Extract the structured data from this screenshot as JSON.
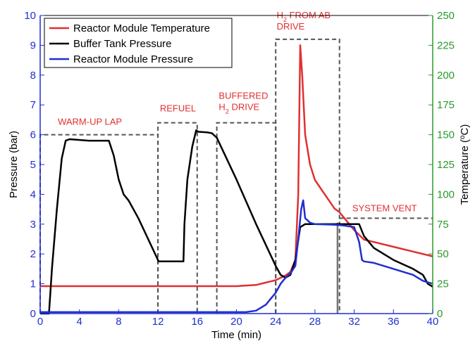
{
  "chart_data": {
    "type": "line",
    "xlabel": "Time (min)",
    "ylabel_left": "Pressure (bar)",
    "ylabel_right": "Temperature (°C)",
    "ylabel_right_parts": {
      "pre": "Temperature (",
      "sup": "o",
      "post": "C)"
    },
    "xlim": [
      0,
      40
    ],
    "ylim_left": [
      0,
      10
    ],
    "ylim_right": [
      0,
      250
    ],
    "grid": false,
    "legend_position": "top-left",
    "x_ticks": [
      "0",
      "4",
      "8",
      "12",
      "16",
      "20",
      "24",
      "28",
      "32",
      "36",
      "40"
    ],
    "y_ticks_left": [
      "0",
      "1",
      "2",
      "3",
      "4",
      "5",
      "6",
      "7",
      "8",
      "9",
      "10"
    ],
    "y_ticks_right": [
      "0",
      "25",
      "50",
      "75",
      "100",
      "125",
      "150",
      "175",
      "200",
      "225",
      "250"
    ],
    "colors": {
      "reactor_temp": "#e03030",
      "buffer_pressure": "#000000",
      "reactor_pressure": "#1f2fd0",
      "left_axis": "#1f2fd0",
      "right_axis": "#2a9a2a",
      "annotation": "#e03030",
      "phase_box": "#555555"
    },
    "series": [
      {
        "name": "Reactor Module Temperature",
        "axis": "right",
        "color": "#e03030",
        "x": [
          0,
          4,
          8,
          12,
          16,
          20,
          22,
          23,
          24,
          24.5,
          25,
          25.5,
          26,
          26.3,
          26.5,
          26.7,
          27,
          27.5,
          28,
          29,
          30,
          30.5,
          31,
          32,
          33,
          34,
          36,
          38,
          40
        ],
        "y": [
          23,
          23,
          23,
          23,
          23,
          23,
          24,
          26,
          28,
          30,
          32,
          35,
          45,
          100,
          225,
          200,
          150,
          125,
          112,
          100,
          88,
          85,
          80,
          70,
          62,
          60,
          56,
          52,
          48
        ]
      },
      {
        "name": "Buffer Tank Pressure",
        "axis": "left",
        "color": "#000000",
        "x": [
          0,
          0.9,
          1.2,
          1.7,
          2.2,
          2.6,
          3,
          5,
          7,
          7.5,
          8,
          8.5,
          9,
          10,
          11,
          12,
          12.05,
          14,
          14.6,
          14.7,
          15,
          15.5,
          15.9,
          16.1,
          17,
          17.5,
          18,
          20,
          22,
          24,
          24.5,
          25,
          25.5,
          26,
          26.5,
          27,
          28,
          30,
          31,
          32,
          32.5,
          33,
          34,
          36,
          38,
          39,
          39.5,
          40
        ],
        "y": [
          0,
          0,
          1.5,
          3.5,
          5.2,
          5.8,
          5.85,
          5.8,
          5.8,
          5.3,
          4.5,
          4.0,
          3.8,
          3.2,
          2.5,
          1.8,
          1.75,
          1.75,
          1.75,
          3.0,
          4.5,
          5.6,
          6.15,
          6.1,
          6.08,
          6.05,
          5.9,
          4.5,
          3.0,
          1.6,
          1.3,
          1.2,
          1.3,
          1.8,
          2.9,
          3.0,
          3.0,
          3.0,
          3.0,
          3.0,
          3.0,
          2.6,
          2.2,
          1.8,
          1.5,
          1.3,
          1.0,
          0.9
        ]
      },
      {
        "name": "Reactor Module Pressure",
        "axis": "left",
        "color": "#1f2fd0",
        "x": [
          0,
          4,
          8,
          12,
          16,
          20,
          21,
          22,
          23,
          24,
          24.5,
          25,
          25.5,
          26,
          26.3,
          26.6,
          26.8,
          27,
          27.5,
          28,
          30,
          31,
          32,
          32.5,
          32.8,
          33,
          34,
          36,
          38,
          39,
          40
        ],
        "y": [
          0.05,
          0.05,
          0.05,
          0.05,
          0.05,
          0.05,
          0.05,
          0.1,
          0.3,
          0.7,
          1.0,
          1.2,
          1.35,
          1.6,
          2.5,
          3.5,
          3.8,
          3.2,
          3.05,
          3.0,
          2.98,
          2.95,
          2.9,
          2.4,
          1.8,
          1.75,
          1.7,
          1.5,
          1.3,
          1.1,
          1.0
        ]
      }
    ],
    "phases": [
      {
        "label_lines": [
          "WARM-UP LAP"
        ],
        "x_start": 0,
        "x_end": 12,
        "level": 6.0
      },
      {
        "label_lines": [
          "REFUEL"
        ],
        "x_start": 12,
        "x_end": 16,
        "level": 6.4
      },
      {
        "label_lines": [
          "BUFFERED",
          "H2 DRIVE"
        ],
        "x_start": 18,
        "x_end": 24,
        "level": 6.4
      },
      {
        "label_lines": [
          "H2 FROM AB",
          "DRIVE"
        ],
        "x_start": 24,
        "x_end": 30.5,
        "level": 9.2
      },
      {
        "label_lines": [
          "SYSTEM  VENT"
        ],
        "x_start": 30.5,
        "x_end": 40,
        "level": 3.2
      }
    ],
    "vent_marker_x": 30.3
  }
}
